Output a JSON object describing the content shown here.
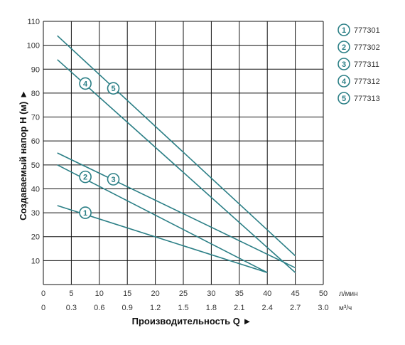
{
  "chart_data": {
    "type": "line",
    "ylabel": "Создаваемый напор H (м) ►",
    "xlabel": "Производительность Q ►",
    "x_unit_primary": "л/мин",
    "x_unit_secondary": "м³/ч",
    "xlim": [
      0,
      50
    ],
    "ylim": [
      0,
      110
    ],
    "grid": true,
    "x_ticks_primary": [
      "0",
      "5",
      "10",
      "15",
      "20",
      "25",
      "30",
      "35",
      "40",
      "45",
      "50"
    ],
    "x_ticks_secondary": [
      "0",
      "0.3",
      "0.6",
      "0.9",
      "1.2",
      "1.5",
      "1.8",
      "2.1",
      "2.4",
      "2.7",
      "3.0"
    ],
    "y_ticks": [
      "10",
      "20",
      "30",
      "40",
      "50",
      "60",
      "70",
      "80",
      "90",
      "100",
      "110"
    ],
    "legend_position": "right",
    "series": [
      {
        "id": "1",
        "name": "777301",
        "points": [
          [
            2.5,
            33
          ],
          [
            40,
            5
          ]
        ],
        "marker_at": [
          7.5,
          30
        ]
      },
      {
        "id": "2",
        "name": "777302",
        "points": [
          [
            2.5,
            50
          ],
          [
            40,
            5
          ]
        ],
        "marker_at": [
          7.5,
          45
        ]
      },
      {
        "id": "3",
        "name": "777311",
        "points": [
          [
            2.5,
            55
          ],
          [
            45,
            7
          ]
        ],
        "marker_at": [
          12.5,
          44
        ]
      },
      {
        "id": "4",
        "name": "777312",
        "points": [
          [
            2.5,
            94
          ],
          [
            45,
            5
          ]
        ],
        "marker_at": [
          7.5,
          84
        ]
      },
      {
        "id": "5",
        "name": "777313",
        "points": [
          [
            2.5,
            104
          ],
          [
            45,
            12
          ]
        ],
        "marker_at": [
          12.5,
          82
        ]
      }
    ],
    "colors": {
      "line": "#2b7f86",
      "grid": "#111111",
      "marker_fill": "#ffffff"
    }
  }
}
